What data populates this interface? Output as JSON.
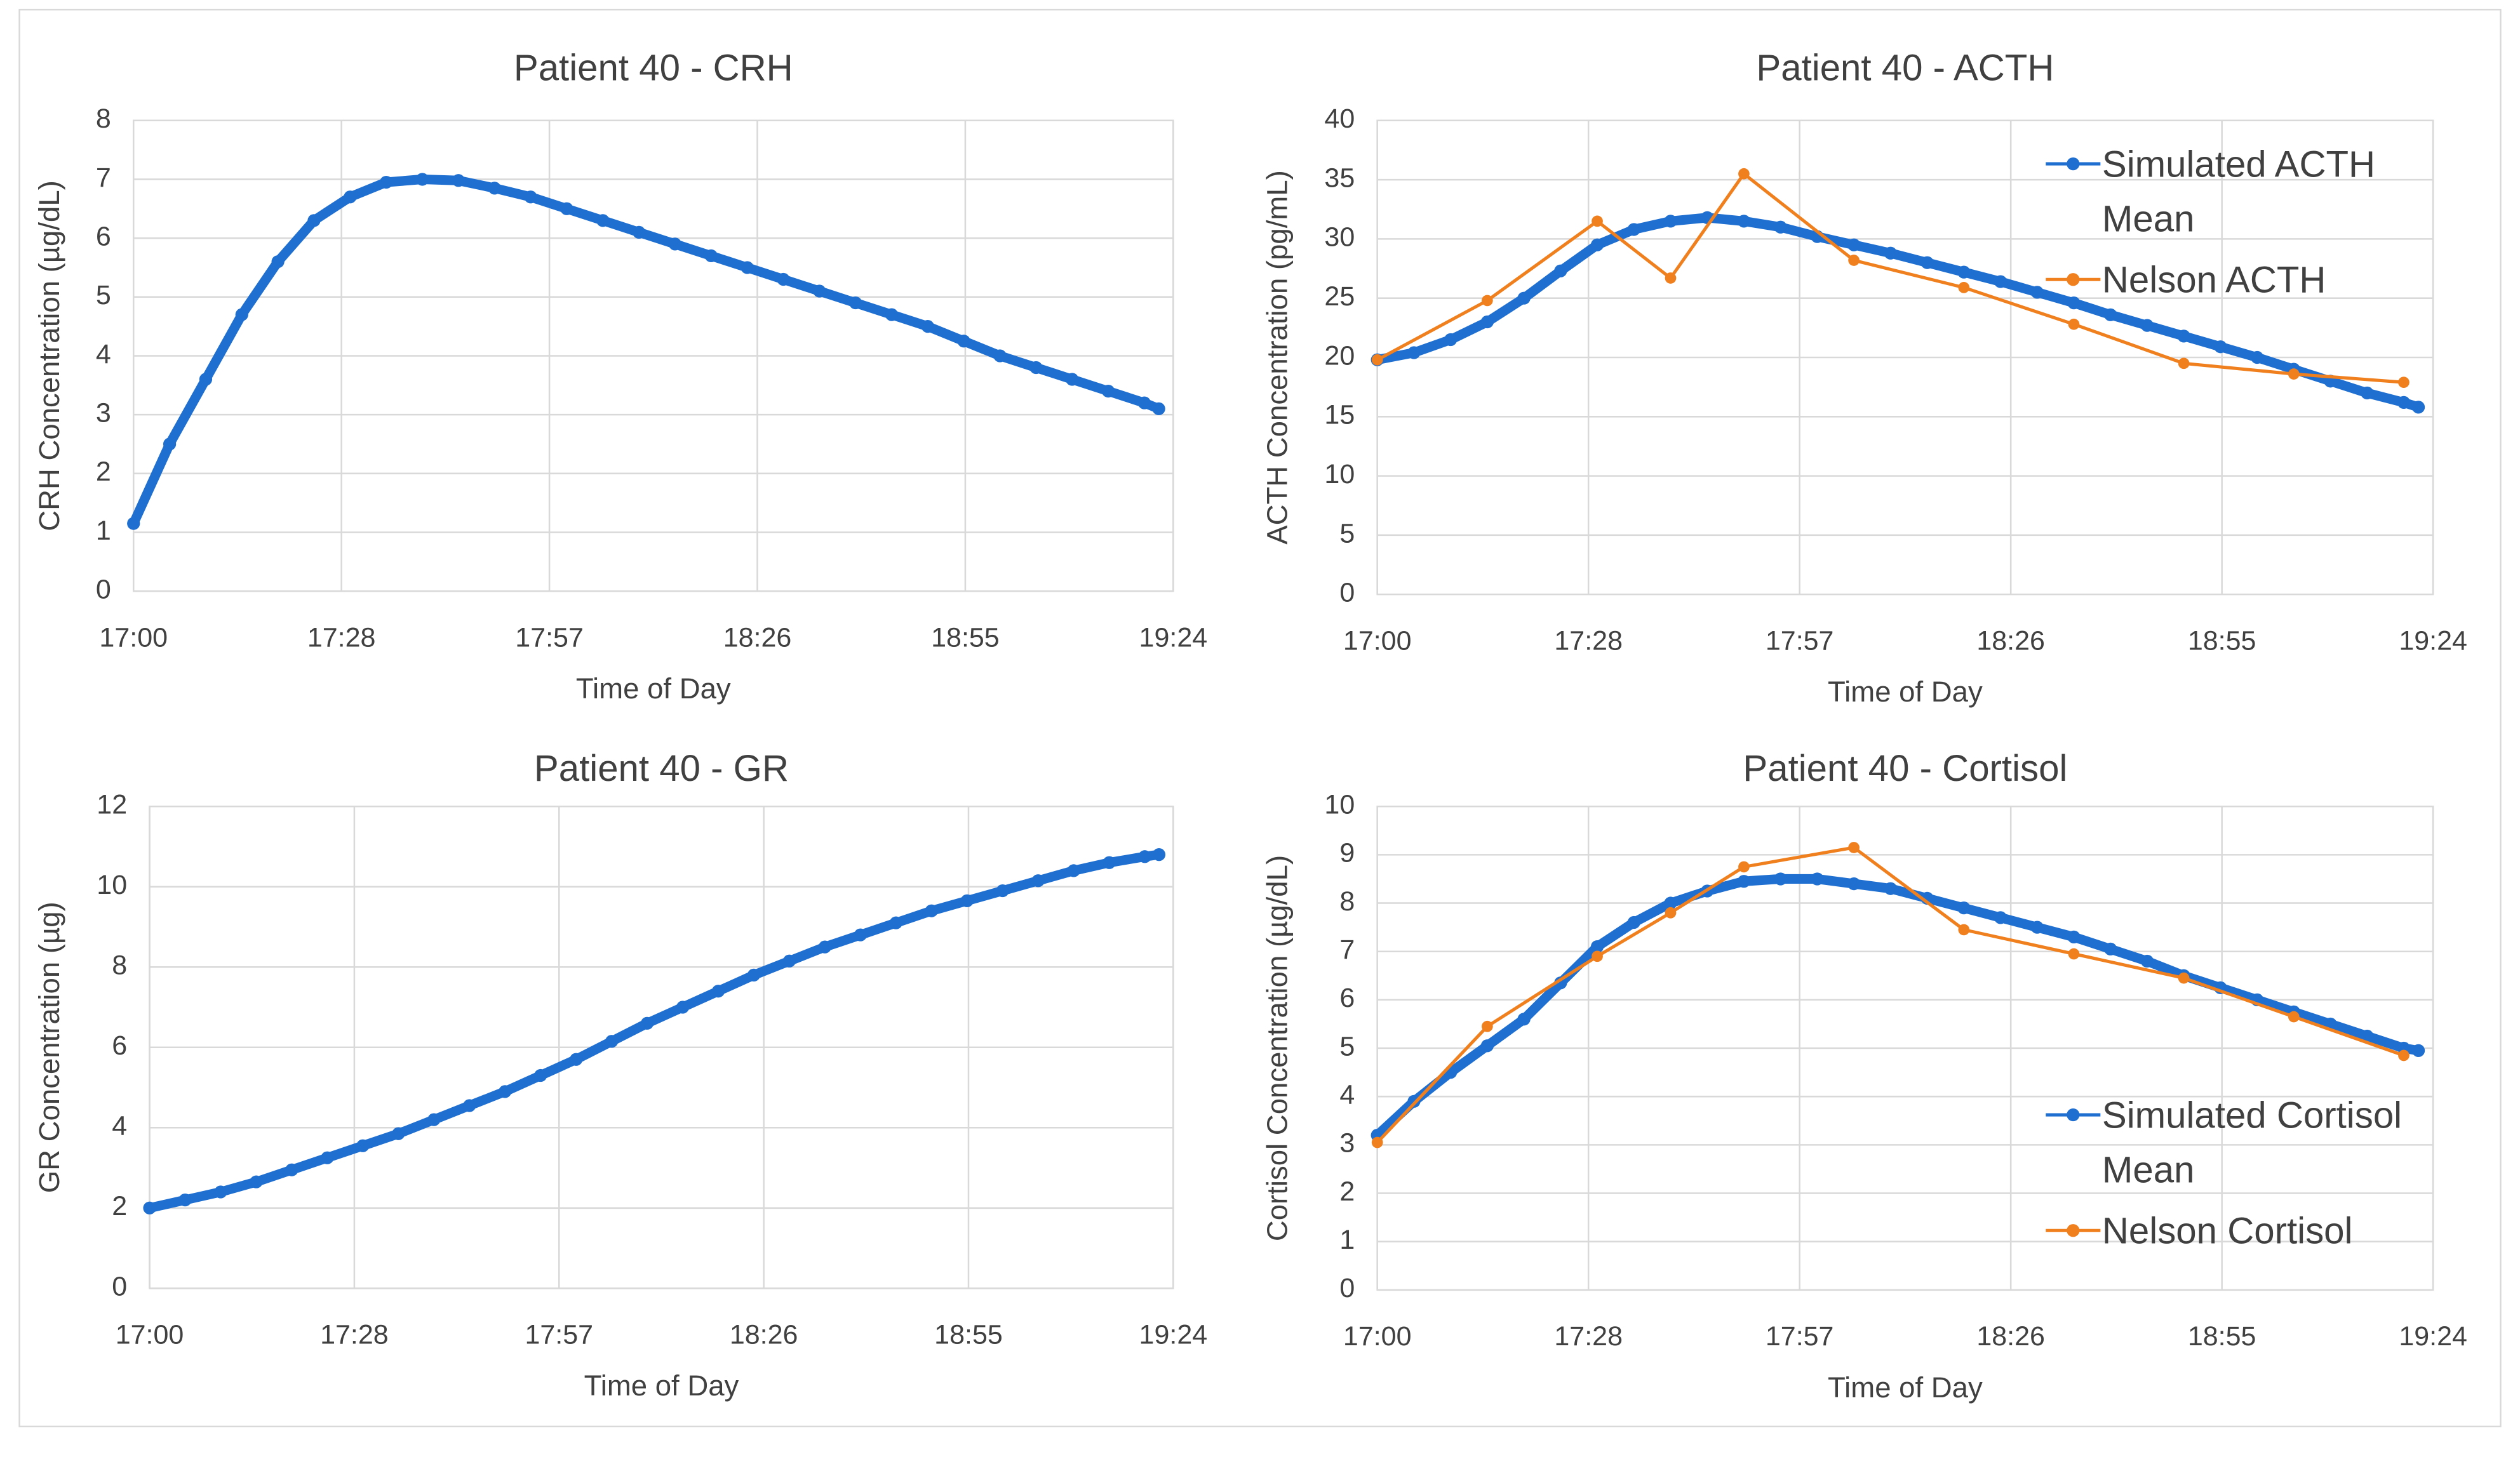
{
  "chart_data": [
    {
      "type": "line",
      "title": "Patient 40 - CRH",
      "xlabel": "Time of Day",
      "ylabel": "CRH Concentration (µg/dL)",
      "xlim": [
        1020,
        1164
      ],
      "ylim": [
        0,
        8
      ],
      "grid": true,
      "xticks": [
        {
          "value": 1020,
          "label": "17:00"
        },
        {
          "value": 1048.8,
          "label": "17:28"
        },
        {
          "value": 1077.6,
          "label": "17:57"
        },
        {
          "value": 1106.4,
          "label": "18:26"
        },
        {
          "value": 1135.2,
          "label": "18:55"
        },
        {
          "value": 1164,
          "label": "19:24"
        }
      ],
      "yticks": [
        0,
        1,
        2,
        3,
        4,
        5,
        6,
        7,
        8
      ],
      "series": [
        {
          "color": "#1f6fd1",
          "x": [
            1020,
            1025,
            1030,
            1035,
            1040,
            1045,
            1050,
            1055,
            1060,
            1065,
            1070,
            1075,
            1080,
            1085,
            1090,
            1095,
            1100,
            1105,
            1110,
            1115,
            1120,
            1125,
            1130,
            1135,
            1140,
            1145,
            1150,
            1155,
            1160,
            1162
          ],
          "values": [
            1.15,
            2.5,
            3.6,
            4.7,
            5.6,
            6.3,
            6.7,
            6.95,
            7.0,
            6.98,
            6.85,
            6.7,
            6.5,
            6.3,
            6.1,
            5.9,
            5.7,
            5.5,
            5.3,
            5.1,
            4.9,
            4.7,
            4.5,
            4.25,
            4.0,
            3.8,
            3.6,
            3.4,
            3.2,
            3.1
          ]
        }
      ]
    },
    {
      "type": "line",
      "title": "Patient 40 - ACTH",
      "xlabel": "Time of Day",
      "ylabel": "ACTH Concentration (pg/mL)",
      "xlim": [
        1020,
        1164
      ],
      "ylim": [
        0,
        40
      ],
      "grid": true,
      "legend": "upper right",
      "xticks": [
        {
          "value": 1020,
          "label": "17:00"
        },
        {
          "value": 1048.8,
          "label": "17:28"
        },
        {
          "value": 1077.6,
          "label": "17:57"
        },
        {
          "value": 1106.4,
          "label": "18:26"
        },
        {
          "value": 1135.2,
          "label": "18:55"
        },
        {
          "value": 1164,
          "label": "19:24"
        }
      ],
      "yticks": [
        0,
        5,
        10,
        15,
        20,
        25,
        30,
        35,
        40
      ],
      "series": [
        {
          "name": "Simulated ACTH Mean",
          "color": "#1f6fd1",
          "x": [
            1020,
            1025,
            1030,
            1035,
            1040,
            1045,
            1050,
            1055,
            1060,
            1065,
            1070,
            1075,
            1080,
            1085,
            1090,
            1095,
            1100,
            1105,
            1110,
            1115,
            1120,
            1125,
            1130,
            1135,
            1140,
            1145,
            1150,
            1155,
            1160,
            1162
          ],
          "values": [
            19.8,
            20.4,
            21.5,
            23.0,
            25.0,
            27.3,
            29.5,
            30.8,
            31.5,
            31.8,
            31.5,
            31.0,
            30.2,
            29.5,
            28.8,
            28.0,
            27.2,
            26.4,
            25.5,
            24.6,
            23.6,
            22.7,
            21.8,
            20.9,
            20.0,
            19.0,
            18.0,
            17.0,
            16.2,
            15.8
          ]
        },
        {
          "name": "Nelson ACTH",
          "color": "#f07f1e",
          "x": [
            1020,
            1035,
            1050,
            1060,
            1070,
            1085,
            1100,
            1115,
            1130,
            1145,
            1160
          ],
          "values": [
            19.8,
            24.8,
            31.5,
            26.7,
            35.5,
            28.2,
            25.9,
            22.8,
            19.5,
            18.6,
            17.9
          ]
        }
      ]
    },
    {
      "type": "line",
      "title": "Patient 40 - GR",
      "xlabel": "Time of Day",
      "ylabel": "GR Concentration (µg)",
      "xlim": [
        1020,
        1164
      ],
      "ylim": [
        0,
        12
      ],
      "grid": true,
      "xticks": [
        {
          "value": 1020,
          "label": "17:00"
        },
        {
          "value": 1048.8,
          "label": "17:28"
        },
        {
          "value": 1077.6,
          "label": "17:57"
        },
        {
          "value": 1106.4,
          "label": "18:26"
        },
        {
          "value": 1135.2,
          "label": "18:55"
        },
        {
          "value": 1164,
          "label": "19:24"
        }
      ],
      "yticks": [
        0,
        2,
        4,
        6,
        8,
        10,
        12
      ],
      "series": [
        {
          "color": "#1f6fd1",
          "x": [
            1020,
            1025,
            1030,
            1035,
            1040,
            1045,
            1050,
            1055,
            1060,
            1065,
            1070,
            1075,
            1080,
            1085,
            1090,
            1095,
            1100,
            1105,
            1110,
            1115,
            1120,
            1125,
            1130,
            1135,
            1140,
            1145,
            1150,
            1155,
            1160,
            1162
          ],
          "values": [
            2.0,
            2.2,
            2.4,
            2.65,
            2.95,
            3.25,
            3.55,
            3.85,
            4.2,
            4.55,
            4.9,
            5.3,
            5.7,
            6.15,
            6.6,
            7.0,
            7.4,
            7.8,
            8.15,
            8.5,
            8.8,
            9.1,
            9.4,
            9.65,
            9.9,
            10.15,
            10.4,
            10.6,
            10.75,
            10.8
          ]
        }
      ]
    },
    {
      "type": "line",
      "title": "Patient 40 - Cortisol",
      "xlabel": "Time of Day",
      "ylabel": "Cortisol Concentration (µg/dL)",
      "xlim": [
        1020,
        1164
      ],
      "ylim": [
        0,
        10
      ],
      "grid": true,
      "legend": "lower right",
      "xticks": [
        {
          "value": 1020,
          "label": "17:00"
        },
        {
          "value": 1048.8,
          "label": "17:28"
        },
        {
          "value": 1077.6,
          "label": "17:57"
        },
        {
          "value": 1106.4,
          "label": "18:26"
        },
        {
          "value": 1135.2,
          "label": "18:55"
        },
        {
          "value": 1164,
          "label": "19:24"
        }
      ],
      "yticks": [
        0,
        1,
        2,
        3,
        4,
        5,
        6,
        7,
        8,
        9,
        10
      ],
      "series": [
        {
          "name": "Simulated Cortisol Mean",
          "color": "#1f6fd1",
          "x": [
            1020,
            1025,
            1030,
            1035,
            1040,
            1045,
            1050,
            1055,
            1060,
            1065,
            1070,
            1075,
            1080,
            1085,
            1090,
            1095,
            1100,
            1105,
            1110,
            1115,
            1120,
            1125,
            1130,
            1135,
            1140,
            1145,
            1150,
            1155,
            1160,
            1162
          ],
          "values": [
            3.2,
            3.9,
            4.5,
            5.05,
            5.6,
            6.35,
            7.1,
            7.6,
            8.0,
            8.25,
            8.45,
            8.5,
            8.5,
            8.4,
            8.3,
            8.1,
            7.9,
            7.7,
            7.5,
            7.3,
            7.05,
            6.8,
            6.5,
            6.25,
            6.0,
            5.75,
            5.5,
            5.25,
            5.0,
            4.95
          ]
        },
        {
          "name": "Nelson Cortisol",
          "color": "#f07f1e",
          "x": [
            1020,
            1035,
            1050,
            1060,
            1070,
            1085,
            1100,
            1115,
            1130,
            1145,
            1160
          ],
          "values": [
            3.05,
            5.45,
            6.9,
            7.8,
            8.75,
            9.15,
            7.45,
            6.95,
            6.45,
            5.65,
            4.85
          ]
        }
      ]
    }
  ]
}
